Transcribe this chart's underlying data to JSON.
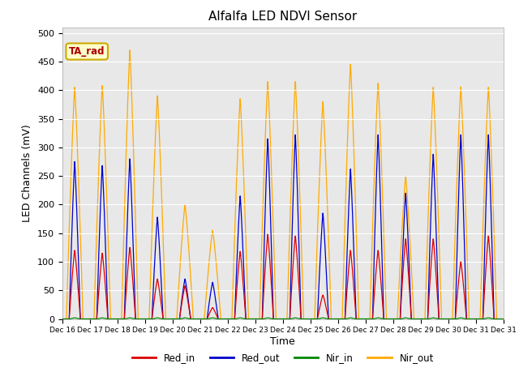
{
  "title": "Alfalfa LED NDVI Sensor",
  "xlabel": "Time",
  "ylabel": "LED Channels (mV)",
  "ylim": [
    0,
    510
  ],
  "yticks": [
    0,
    50,
    100,
    150,
    200,
    250,
    300,
    350,
    400,
    450,
    500
  ],
  "annotation": "TA_rad",
  "legend_labels": [
    "Red_in",
    "Red_out",
    "Nir_in",
    "Nir_out"
  ],
  "legend_colors": [
    "#dd0000",
    "#0000cc",
    "#008800",
    "#ffaa00"
  ],
  "bg_color": "#e8e8e8",
  "fig_color": "#ffffff",
  "xtick_labels": [
    "Dec 16",
    "Dec 17",
    "Dec 18",
    "Dec 19",
    "Dec 20",
    "Dec 21",
    "Dec 22",
    "Dec 23",
    "Dec 24",
    "Dec 25",
    "Dec 26",
    "Dec 27",
    "Dec 28",
    "Dec 29",
    "Dec 30",
    "Dec 31"
  ],
  "red_in_peaks": [
    120,
    115,
    125,
    70,
    58,
    20,
    118,
    148,
    145,
    42,
    120,
    120,
    140,
    140,
    100,
    145
  ],
  "red_out_peaks": [
    275,
    268,
    280,
    178,
    70,
    64,
    215,
    315,
    322,
    185,
    262,
    322,
    220,
    288,
    322,
    322
  ],
  "nir_in_peaks": [
    2,
    2,
    2,
    2,
    2,
    2,
    2,
    2,
    2,
    2,
    2,
    2,
    2,
    2,
    2,
    2
  ],
  "nir_out_peaks": [
    405,
    408,
    470,
    390,
    200,
    155,
    385,
    415,
    415,
    380,
    445,
    412,
    250,
    405,
    406,
    405
  ]
}
